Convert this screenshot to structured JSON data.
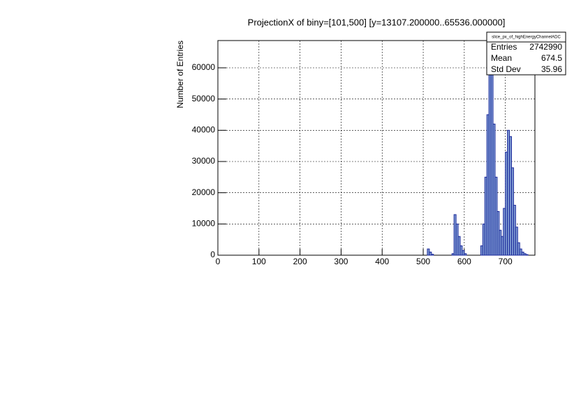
{
  "chart_data": {
    "type": "histogram",
    "title": "ProjectionX of biny=[101,500] [y=13107.200000..65536.000000]",
    "y_label": "Number of Entries",
    "bins": [
      510,
      515,
      520,
      525,
      530,
      535,
      540,
      545,
      550,
      555,
      560,
      565,
      570,
      575,
      580,
      585,
      590,
      595,
      600,
      605,
      610,
      615,
      620,
      625,
      630,
      635,
      640,
      645,
      650,
      655,
      660,
      665,
      670,
      675,
      680,
      685,
      690,
      695,
      700,
      705,
      710,
      715,
      720,
      725,
      730,
      735,
      740,
      745,
      750,
      755,
      760
    ],
    "values": [
      2000,
      1000,
      300,
      0,
      0,
      0,
      0,
      0,
      0,
      0,
      0,
      0,
      500,
      13000,
      10000,
      6000,
      3000,
      1500,
      500,
      0,
      0,
      0,
      0,
      0,
      0,
      0,
      3000,
      10000,
      25000,
      45000,
      62000,
      58000,
      42000,
      25000,
      14000,
      8000,
      6000,
      15000,
      33000,
      40000,
      38000,
      28000,
      16000,
      9000,
      4000,
      2000,
      1000,
      500,
      200,
      0
    ],
    "color": "#7d99d1",
    "line_color": "#1c2a9c",
    "xlim": [
      0,
      772
    ],
    "xticks": [
      0,
      100,
      200,
      300,
      400,
      500,
      600,
      700
    ],
    "ylim": [
      0,
      68730
    ],
    "yticks": [
      0,
      10000,
      20000,
      30000,
      40000,
      50000,
      60000
    ],
    "grid": true,
    "stats": {
      "title": "slice_px_of_highEnergyChannelADC",
      "rows": [
        {
          "label": "Entries",
          "value": 2742990
        },
        {
          "label": "Mean",
          "value": 674.5
        },
        {
          "label": "Std Dev",
          "value": 35.96
        }
      ]
    }
  }
}
